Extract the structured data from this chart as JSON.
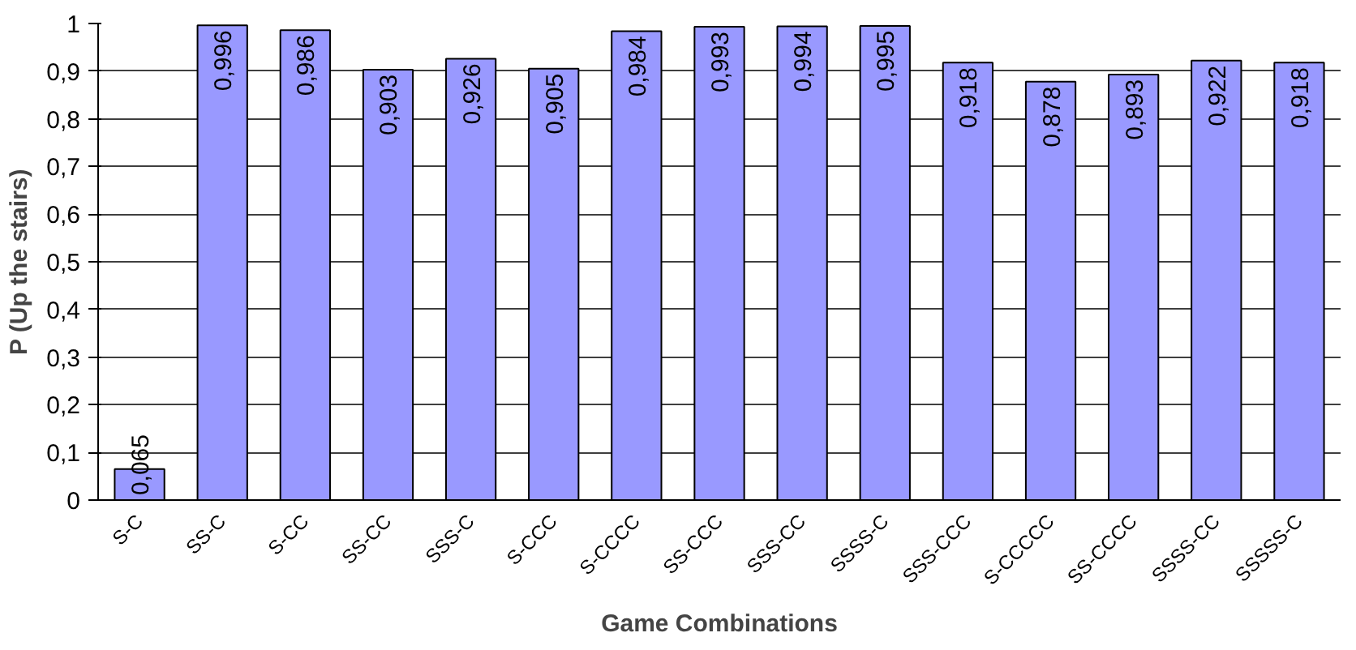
{
  "chart_data": {
    "type": "bar",
    "xlabel": "Game Combinations",
    "ylabel": "P (Up the stairs)",
    "categories": [
      "S-C",
      "SS-C",
      "S-CC",
      "SS-CC",
      "SSS-C",
      "S-CCC",
      "S-CCCC",
      "SS-CCC",
      "SSS-CC",
      "SSSS-C",
      "SSS-CCC",
      "S-CCCCC",
      "SS-CCCC",
      "SSSS-CC",
      "SSSSS-C"
    ],
    "values": [
      0.065,
      0.996,
      0.986,
      0.903,
      0.926,
      0.905,
      0.984,
      0.993,
      0.994,
      0.995,
      0.918,
      0.878,
      0.893,
      0.922,
      0.918
    ],
    "value_labels": [
      "0,065",
      "0,996",
      "0,986",
      "0,903",
      "0,926",
      "0,905",
      "0,984",
      "0,993",
      "0,994",
      "0,995",
      "0,918",
      "0,878",
      "0,893",
      "0,922",
      "0,918"
    ],
    "color": "#9999ff",
    "ylim": [
      0,
      1
    ],
    "yticks": [
      0,
      {
        "value": 0.1,
        "label": "0,1"
      },
      {
        "value": 0.2,
        "label": "0,2"
      },
      {
        "value": 0.3,
        "label": "0,3"
      },
      {
        "value": 0.4,
        "label": "0,4"
      },
      {
        "value": 0.5,
        "label": "0,5"
      },
      {
        "value": 0.6,
        "label": "0,6"
      },
      {
        "value": 0.7,
        "label": "0,7"
      },
      {
        "value": 0.8,
        "label": "0,8"
      },
      {
        "value": 0.9,
        "label": "0,9"
      },
      1
    ],
    "grid": "y"
  }
}
